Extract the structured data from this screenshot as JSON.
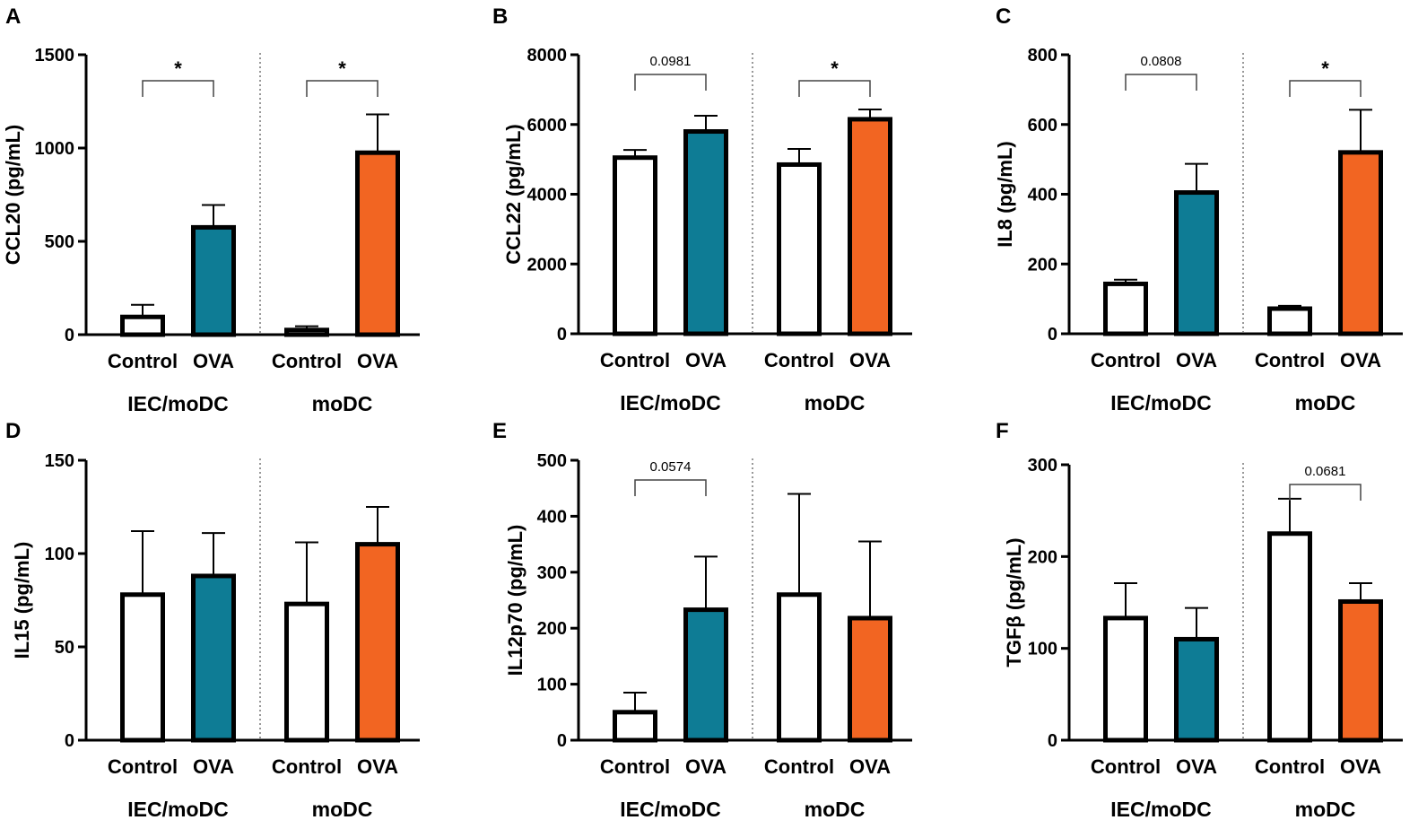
{
  "colors": {
    "control_fill": "#ffffff",
    "iec_ova_fill": "#0e7c95",
    "modc_ova_fill": "#f26522",
    "stroke": "#000000"
  },
  "chart_data": [
    {
      "panel": "A",
      "type": "bar",
      "ylabel": "CCL20 (pg/mL)",
      "ylim": [
        0,
        1500
      ],
      "yticks": [
        "0",
        "500",
        "1000",
        "1500"
      ],
      "ytick_values": [
        0,
        500,
        1000,
        1500
      ],
      "categories": [
        "Control",
        "OVA",
        "Control",
        "OVA"
      ],
      "groups": [
        "IEC/moDC",
        "moDC"
      ],
      "values": [
        95,
        575,
        25,
        975
      ],
      "errors": [
        65,
        120,
        20,
        205
      ],
      "significance": [
        {
          "group": 0,
          "label": "*"
        },
        {
          "group": 1,
          "label": "*"
        }
      ]
    },
    {
      "panel": "B",
      "type": "bar",
      "ylabel": "CCL22 (pg/mL)",
      "ylim": [
        0,
        8000
      ],
      "yticks": [
        "0",
        "2000",
        "4000",
        "6000",
        "8000"
      ],
      "ytick_values": [
        0,
        2000,
        4000,
        6000,
        8000
      ],
      "categories": [
        "Control",
        "OVA",
        "Control",
        "OVA"
      ],
      "groups": [
        "IEC/moDC",
        "moDC"
      ],
      "values": [
        5050,
        5800,
        4850,
        6150
      ],
      "errors": [
        220,
        450,
        450,
        280
      ],
      "significance": [
        {
          "group": 0,
          "label": "0.0981"
        },
        {
          "group": 1,
          "label": "*"
        }
      ]
    },
    {
      "panel": "C",
      "type": "bar",
      "ylabel": "IL8 (pg/mL)",
      "ylim": [
        0,
        800
      ],
      "yticks": [
        "0",
        "200",
        "400",
        "600",
        "800"
      ],
      "ytick_values": [
        0,
        200,
        400,
        600,
        800
      ],
      "categories": [
        "Control",
        "OVA",
        "Control",
        "OVA"
      ],
      "groups": [
        "IEC/moDC",
        "moDC"
      ],
      "values": [
        143,
        405,
        72,
        520
      ],
      "errors": [
        12,
        82,
        8,
        122
      ],
      "significance": [
        {
          "group": 0,
          "label": "0.0808"
        },
        {
          "group": 1,
          "label": "*"
        }
      ]
    },
    {
      "panel": "D",
      "type": "bar",
      "ylabel": "IL15 (pg/mL)",
      "ylim": [
        0,
        150
      ],
      "yticks": [
        "0",
        "50",
        "100",
        "150"
      ],
      "ytick_values": [
        0,
        50,
        100,
        150
      ],
      "categories": [
        "Control",
        "OVA",
        "Control",
        "OVA"
      ],
      "groups": [
        "IEC/moDC",
        "moDC"
      ],
      "values": [
        78,
        88,
        73,
        105
      ],
      "errors": [
        34,
        23,
        33,
        20
      ],
      "significance": []
    },
    {
      "panel": "E",
      "type": "bar",
      "ylabel": "IL12p70 (pg/mL)",
      "ylim": [
        0,
        500
      ],
      "yticks": [
        "0",
        "100",
        "200",
        "300",
        "400",
        "500"
      ],
      "ytick_values": [
        0,
        100,
        200,
        300,
        400,
        500
      ],
      "categories": [
        "Control",
        "OVA",
        "Control",
        "OVA"
      ],
      "groups": [
        "IEC/moDC",
        "moDC"
      ],
      "values": [
        50,
        233,
        260,
        218
      ],
      "errors": [
        35,
        95,
        180,
        137
      ],
      "significance": [
        {
          "group": 0,
          "label": "0.0574"
        }
      ]
    },
    {
      "panel": "F",
      "type": "bar",
      "ylabel": "TGFβ (pg/mL)",
      "ylim": [
        0,
        300
      ],
      "yticks": [
        "0",
        "100",
        "200",
        "300"
      ],
      "ytick_values": [
        0,
        100,
        200,
        300
      ],
      "categories": [
        "Control",
        "OVA",
        "Control",
        "OVA"
      ],
      "groups": [
        "IEC/moDC",
        "moDC"
      ],
      "values": [
        133,
        110,
        225,
        151
      ],
      "errors": [
        38,
        34,
        38,
        20
      ],
      "significance": [
        {
          "group": 1,
          "label": "0.0681"
        }
      ]
    }
  ]
}
